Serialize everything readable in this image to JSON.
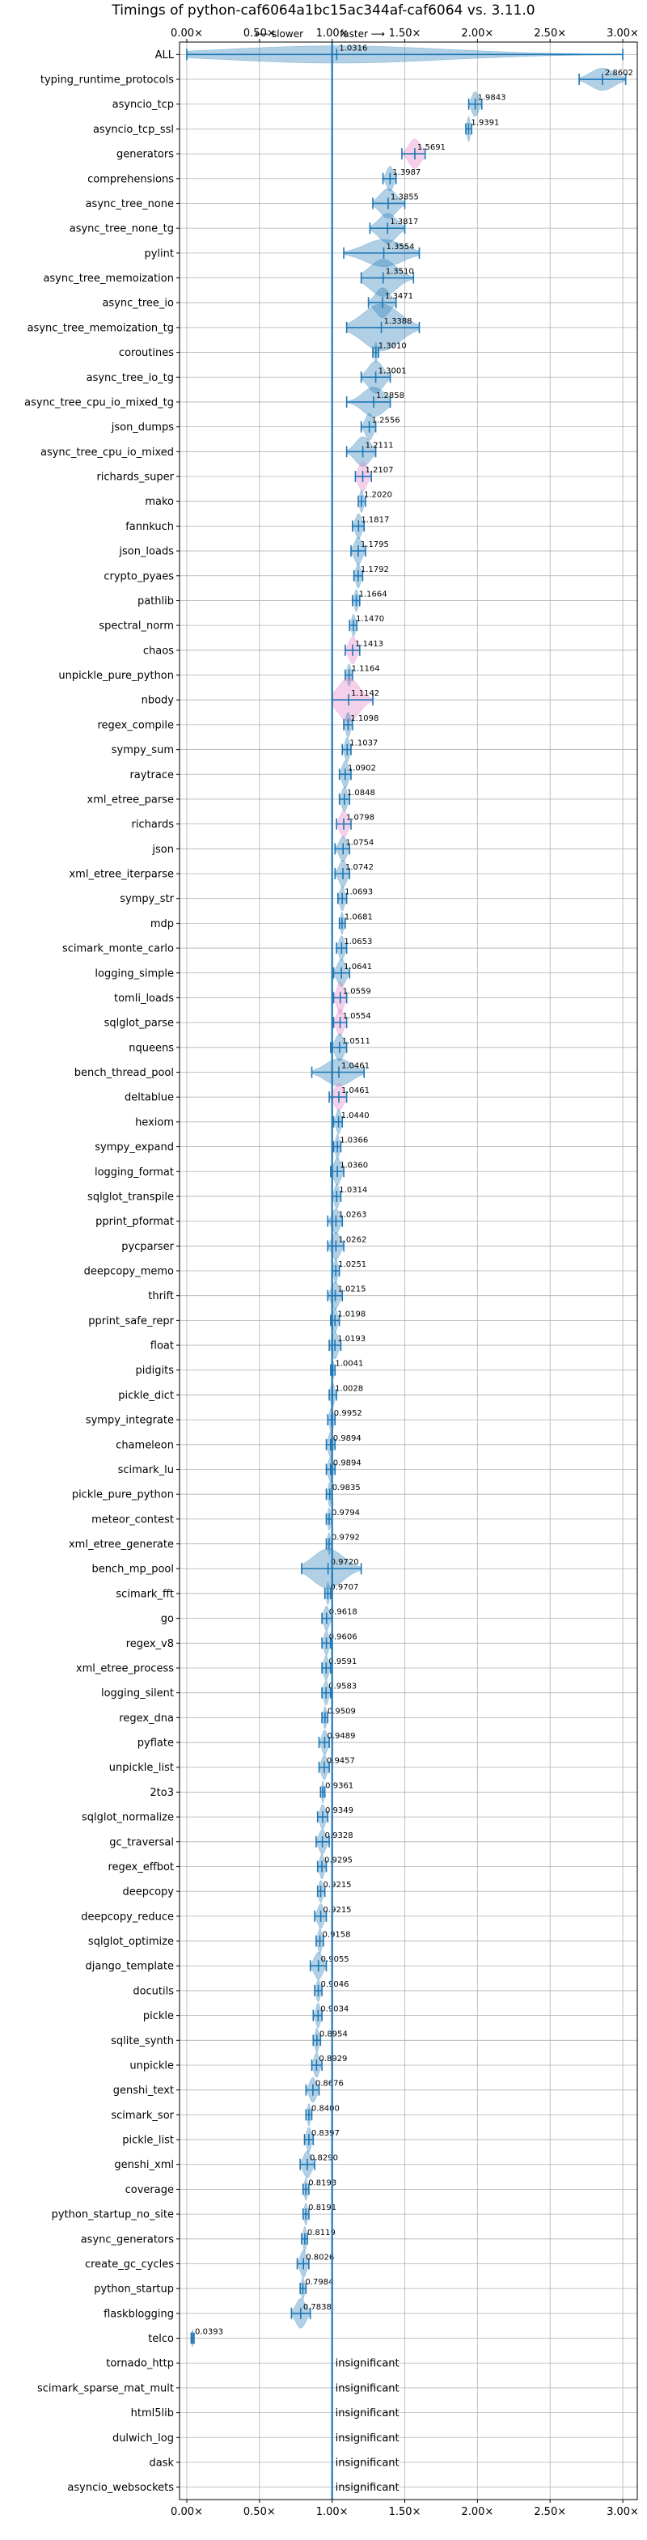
{
  "chart_data": {
    "type": "violin",
    "title": "Timings of python-caf6064a1bc15ac344af-caf6064 vs. 3.11.0",
    "subtitle_slower": "⟵ slower",
    "subtitle_faster": "faster ⟶",
    "xlim": [
      -0.05,
      3.1
    ],
    "xticks": [
      0.0,
      0.5,
      1.0,
      1.5,
      2.0,
      2.5,
      3.0
    ],
    "xtick_labels": [
      "0.00×",
      "0.50×",
      "1.00×",
      "1.50×",
      "2.00×",
      "2.50×",
      "3.00×"
    ],
    "grid": true,
    "reference_line": 1.0,
    "colors": {
      "normal": "#1f77b4",
      "highlight": "#e377c2",
      "reference": "#1f77b4"
    },
    "benchmarks": [
      {
        "name": "ALL",
        "value": 1.0316,
        "label": "1.0316",
        "lo": 0.0,
        "hi": 3.0,
        "w": 0.35
      },
      {
        "name": "typing_runtime_protocols",
        "value": 2.8602,
        "label": "2.8602",
        "lo": 2.7,
        "hi": 3.02,
        "w": 0.45
      },
      {
        "name": "asyncio_tcp",
        "value": 1.9843,
        "label": "1.9843",
        "lo": 1.94,
        "hi": 2.03,
        "w": 0.5
      },
      {
        "name": "asyncio_tcp_ssl",
        "value": 1.9391,
        "label": "1.9391",
        "lo": 1.92,
        "hi": 1.96,
        "w": 0.5
      },
      {
        "name": "generators",
        "value": 1.5691,
        "label": "1.5691",
        "lo": 1.48,
        "hi": 1.64,
        "w": 0.6,
        "hl": true
      },
      {
        "name": "comprehensions",
        "value": 1.3987,
        "label": "1.3987",
        "lo": 1.35,
        "hi": 1.44,
        "w": 0.5
      },
      {
        "name": "async_tree_none",
        "value": 1.3855,
        "label": "1.3855",
        "lo": 1.28,
        "hi": 1.5,
        "w": 0.6
      },
      {
        "name": "async_tree_none_tg",
        "value": 1.3817,
        "label": "1.3817",
        "lo": 1.26,
        "hi": 1.5,
        "w": 0.6
      },
      {
        "name": "pylint",
        "value": 1.3554,
        "label": "1.3554",
        "lo": 1.08,
        "hi": 1.6,
        "w": 0.55
      },
      {
        "name": "async_tree_memoization",
        "value": 1.351,
        "label": "1.3510",
        "lo": 1.2,
        "hi": 1.56,
        "w": 0.75
      },
      {
        "name": "async_tree_io",
        "value": 1.3471,
        "label": "1.3471",
        "lo": 1.25,
        "hi": 1.44,
        "w": 0.6
      },
      {
        "name": "async_tree_memoization_tg",
        "value": 1.3388,
        "label": "1.3388",
        "lo": 1.1,
        "hi": 1.6,
        "w": 0.95
      },
      {
        "name": "coroutines",
        "value": 1.301,
        "label": "1.3010",
        "lo": 1.28,
        "hi": 1.32,
        "w": 0.4
      },
      {
        "name": "async_tree_io_tg",
        "value": 1.3001,
        "label": "1.3001",
        "lo": 1.2,
        "hi": 1.4,
        "w": 0.65
      },
      {
        "name": "async_tree_cpu_io_mixed_tg",
        "value": 1.2858,
        "label": "1.2858",
        "lo": 1.1,
        "hi": 1.4,
        "w": 0.6
      },
      {
        "name": "json_dumps",
        "value": 1.2556,
        "label": "1.2556",
        "lo": 1.2,
        "hi": 1.3,
        "w": 0.55
      },
      {
        "name": "async_tree_cpu_io_mixed",
        "value": 1.2111,
        "label": "1.2111",
        "lo": 1.1,
        "hi": 1.3,
        "w": 0.6
      },
      {
        "name": "richards_super",
        "value": 1.2107,
        "label": "1.2107",
        "lo": 1.16,
        "hi": 1.27,
        "w": 0.6,
        "hl": true
      },
      {
        "name": "mako",
        "value": 1.202,
        "label": "1.2020",
        "lo": 1.18,
        "hi": 1.23,
        "w": 0.45
      },
      {
        "name": "fannkuch",
        "value": 1.1817,
        "label": "1.1817",
        "lo": 1.14,
        "hi": 1.22,
        "w": 0.5
      },
      {
        "name": "json_loads",
        "value": 1.1795,
        "label": "1.1795",
        "lo": 1.13,
        "hi": 1.23,
        "w": 0.55
      },
      {
        "name": "crypto_pyaes",
        "value": 1.1792,
        "label": "1.1792",
        "lo": 1.15,
        "hi": 1.21,
        "w": 0.5
      },
      {
        "name": "pathlib",
        "value": 1.1664,
        "label": "1.1664",
        "lo": 1.14,
        "hi": 1.19,
        "w": 0.45
      },
      {
        "name": "spectral_norm",
        "value": 1.147,
        "label": "1.1470",
        "lo": 1.12,
        "hi": 1.17,
        "w": 0.45
      },
      {
        "name": "chaos",
        "value": 1.1413,
        "label": "1.1413",
        "lo": 1.09,
        "hi": 1.19,
        "w": 0.55,
        "hl": true
      },
      {
        "name": "unpickle_pure_python",
        "value": 1.1164,
        "label": "1.1164",
        "lo": 1.09,
        "hi": 1.14,
        "w": 0.45
      },
      {
        "name": "nbody",
        "value": 1.1142,
        "label": "1.1142",
        "lo": 1.0,
        "hi": 1.28,
        "w": 0.9,
        "hl": true
      },
      {
        "name": "regex_compile",
        "value": 1.1098,
        "label": "1.1098",
        "lo": 1.08,
        "hi": 1.14,
        "w": 0.5
      },
      {
        "name": "sympy_sum",
        "value": 1.1037,
        "label": "1.1037",
        "lo": 1.07,
        "hi": 1.13,
        "w": 0.5
      },
      {
        "name": "raytrace",
        "value": 1.0902,
        "label": "1.0902",
        "lo": 1.05,
        "hi": 1.13,
        "w": 0.55
      },
      {
        "name": "xml_etree_parse",
        "value": 1.0848,
        "label": "1.0848",
        "lo": 1.05,
        "hi": 1.12,
        "w": 0.5
      },
      {
        "name": "richards",
        "value": 1.0798,
        "label": "1.0798",
        "lo": 1.03,
        "hi": 1.13,
        "w": 0.55,
        "hl": true
      },
      {
        "name": "json",
        "value": 1.0754,
        "label": "1.0754",
        "lo": 1.02,
        "hi": 1.12,
        "w": 0.5
      },
      {
        "name": "xml_etree_iterparse",
        "value": 1.0742,
        "label": "1.0742",
        "lo": 1.02,
        "hi": 1.12,
        "w": 0.55
      },
      {
        "name": "sympy_str",
        "value": 1.0693,
        "label": "1.0693",
        "lo": 1.04,
        "hi": 1.1,
        "w": 0.5
      },
      {
        "name": "mdp",
        "value": 1.0681,
        "label": "1.0681",
        "lo": 1.05,
        "hi": 1.09,
        "w": 0.45
      },
      {
        "name": "scimark_monte_carlo",
        "value": 1.0653,
        "label": "1.0653",
        "lo": 1.03,
        "hi": 1.1,
        "w": 0.5
      },
      {
        "name": "logging_simple",
        "value": 1.0641,
        "label": "1.0641",
        "lo": 1.01,
        "hi": 1.12,
        "w": 0.55
      },
      {
        "name": "tomli_loads",
        "value": 1.0559,
        "label": "1.0559",
        "lo": 1.01,
        "hi": 1.1,
        "w": 0.65,
        "hl": true
      },
      {
        "name": "sqlglot_parse",
        "value": 1.0554,
        "label": "1.0554",
        "lo": 1.01,
        "hi": 1.1,
        "w": 0.55,
        "hl": true
      },
      {
        "name": "nqueens",
        "value": 1.0511,
        "label": "1.0511",
        "lo": 0.99,
        "hi": 1.1,
        "w": 0.55
      },
      {
        "name": "bench_thread_pool",
        "value": 1.0461,
        "label": "1.0461",
        "lo": 0.86,
        "hi": 1.22,
        "w": 0.55
      },
      {
        "name": "deltablue",
        "value": 1.0461,
        "label": "1.0461",
        "lo": 0.98,
        "hi": 1.1,
        "w": 0.55,
        "hl": true
      },
      {
        "name": "hexiom",
        "value": 1.044,
        "label": "1.0440",
        "lo": 1.01,
        "hi": 1.07,
        "w": 0.5
      },
      {
        "name": "sympy_expand",
        "value": 1.0366,
        "label": "1.0366",
        "lo": 1.01,
        "hi": 1.06,
        "w": 0.5
      },
      {
        "name": "logging_format",
        "value": 1.036,
        "label": "1.0360",
        "lo": 0.99,
        "hi": 1.08,
        "w": 0.55
      },
      {
        "name": "sqlglot_transpile",
        "value": 1.0314,
        "label": "1.0314",
        "lo": 1.0,
        "hi": 1.06,
        "w": 0.5
      },
      {
        "name": "pprint_pformat",
        "value": 1.0263,
        "label": "1.0263",
        "lo": 0.97,
        "hi": 1.07,
        "w": 0.5
      },
      {
        "name": "pycparser",
        "value": 1.0262,
        "label": "1.0262",
        "lo": 0.97,
        "hi": 1.08,
        "w": 0.55
      },
      {
        "name": "deepcopy_memo",
        "value": 1.0251,
        "label": "1.0251",
        "lo": 1.0,
        "hi": 1.05,
        "w": 0.5
      },
      {
        "name": "thrift",
        "value": 1.0215,
        "label": "1.0215",
        "lo": 0.97,
        "hi": 1.07,
        "w": 0.55
      },
      {
        "name": "pprint_safe_repr",
        "value": 1.0198,
        "label": "1.0198",
        "lo": 0.99,
        "hi": 1.05,
        "w": 0.5
      },
      {
        "name": "float",
        "value": 1.0193,
        "label": "1.0193",
        "lo": 0.98,
        "hi": 1.06,
        "w": 0.55
      },
      {
        "name": "pidigits",
        "value": 1.0041,
        "label": "1.0041",
        "lo": 0.99,
        "hi": 1.02,
        "w": 0.4
      },
      {
        "name": "pickle_dict",
        "value": 1.0028,
        "label": "1.0028",
        "lo": 0.98,
        "hi": 1.03,
        "w": 0.5
      },
      {
        "name": "sympy_integrate",
        "value": 0.9952,
        "label": "0.9952",
        "lo": 0.97,
        "hi": 1.02,
        "w": 0.5
      },
      {
        "name": "chameleon",
        "value": 0.9894,
        "label": "0.9894",
        "lo": 0.96,
        "hi": 1.02,
        "w": 0.5
      },
      {
        "name": "scimark_lu",
        "value": 0.9894,
        "label": "0.9894",
        "lo": 0.96,
        "hi": 1.02,
        "w": 0.5
      },
      {
        "name": "pickle_pure_python",
        "value": 0.9835,
        "label": "0.9835",
        "lo": 0.96,
        "hi": 1.0,
        "w": 0.5
      },
      {
        "name": "meteor_contest",
        "value": 0.9794,
        "label": "0.9794",
        "lo": 0.96,
        "hi": 1.0,
        "w": 0.45
      },
      {
        "name": "xml_etree_generate",
        "value": 0.9792,
        "label": "0.9792",
        "lo": 0.96,
        "hi": 1.0,
        "w": 0.45
      },
      {
        "name": "bench_mp_pool",
        "value": 0.972,
        "label": "0.9720",
        "lo": 0.79,
        "hi": 1.2,
        "w": 0.8
      },
      {
        "name": "scimark_fft",
        "value": 0.9707,
        "label": "0.9707",
        "lo": 0.95,
        "hi": 0.99,
        "w": 0.45
      },
      {
        "name": "go",
        "value": 0.9618,
        "label": "0.9618",
        "lo": 0.93,
        "hi": 1.0,
        "w": 0.5
      },
      {
        "name": "regex_v8",
        "value": 0.9606,
        "label": "0.9606",
        "lo": 0.93,
        "hi": 0.99,
        "w": 0.5
      },
      {
        "name": "xml_etree_process",
        "value": 0.9591,
        "label": "0.9591",
        "lo": 0.93,
        "hi": 0.99,
        "w": 0.5
      },
      {
        "name": "logging_silent",
        "value": 0.9583,
        "label": "0.9583",
        "lo": 0.93,
        "hi": 0.99,
        "w": 0.5
      },
      {
        "name": "regex_dna",
        "value": 0.9509,
        "label": "0.9509",
        "lo": 0.93,
        "hi": 0.97,
        "w": 0.45
      },
      {
        "name": "pyflate",
        "value": 0.9489,
        "label": "0.9489",
        "lo": 0.91,
        "hi": 0.98,
        "w": 0.5
      },
      {
        "name": "unpickle_list",
        "value": 0.9457,
        "label": "0.9457",
        "lo": 0.91,
        "hi": 0.98,
        "w": 0.5
      },
      {
        "name": "2to3",
        "value": 0.9361,
        "label": "0.9361",
        "lo": 0.92,
        "hi": 0.95,
        "w": 0.45
      },
      {
        "name": "sqlglot_normalize",
        "value": 0.9349,
        "label": "0.9349",
        "lo": 0.9,
        "hi": 0.97,
        "w": 0.5
      },
      {
        "name": "gc_traversal",
        "value": 0.9328,
        "label": "0.9328",
        "lo": 0.89,
        "hi": 0.98,
        "w": 0.5
      },
      {
        "name": "regex_effbot",
        "value": 0.9295,
        "label": "0.9295",
        "lo": 0.9,
        "hi": 0.96,
        "w": 0.5
      },
      {
        "name": "deepcopy",
        "value": 0.9215,
        "label": "0.9215",
        "lo": 0.9,
        "hi": 0.95,
        "w": 0.45
      },
      {
        "name": "deepcopy_reduce",
        "value": 0.9215,
        "label": "0.9215",
        "lo": 0.88,
        "hi": 0.96,
        "w": 0.5
      },
      {
        "name": "sqlglot_optimize",
        "value": 0.9158,
        "label": "0.9158",
        "lo": 0.89,
        "hi": 0.94,
        "w": 0.5
      },
      {
        "name": "django_template",
        "value": 0.9055,
        "label": "0.9055",
        "lo": 0.85,
        "hi": 0.96,
        "w": 0.55
      },
      {
        "name": "docutils",
        "value": 0.9046,
        "label": "0.9046",
        "lo": 0.88,
        "hi": 0.93,
        "w": 0.45
      },
      {
        "name": "pickle",
        "value": 0.9034,
        "label": "0.9034",
        "lo": 0.87,
        "hi": 0.93,
        "w": 0.5
      },
      {
        "name": "sqlite_synth",
        "value": 0.8954,
        "label": "0.8954",
        "lo": 0.87,
        "hi": 0.92,
        "w": 0.5
      },
      {
        "name": "unpickle",
        "value": 0.8929,
        "label": "0.8929",
        "lo": 0.86,
        "hi": 0.93,
        "w": 0.5
      },
      {
        "name": "genshi_text",
        "value": 0.8676,
        "label": "0.8676",
        "lo": 0.82,
        "hi": 0.91,
        "w": 0.5
      },
      {
        "name": "scimark_sor",
        "value": 0.84,
        "label": "0.8400",
        "lo": 0.82,
        "hi": 0.86,
        "w": 0.45
      },
      {
        "name": "pickle_list",
        "value": 0.8397,
        "label": "0.8397",
        "lo": 0.81,
        "hi": 0.87,
        "w": 0.5
      },
      {
        "name": "genshi_xml",
        "value": 0.829,
        "label": "0.8290",
        "lo": 0.78,
        "hi": 0.88,
        "w": 0.55
      },
      {
        "name": "coverage",
        "value": 0.8193,
        "label": "0.8193",
        "lo": 0.8,
        "hi": 0.84,
        "w": 0.45
      },
      {
        "name": "python_startup_no_site",
        "value": 0.8191,
        "label": "0.8191",
        "lo": 0.8,
        "hi": 0.84,
        "w": 0.45
      },
      {
        "name": "async_generators",
        "value": 0.8119,
        "label": "0.8119",
        "lo": 0.79,
        "hi": 0.83,
        "w": 0.5
      },
      {
        "name": "create_gc_cycles",
        "value": 0.8026,
        "label": "0.8026",
        "lo": 0.76,
        "hi": 0.84,
        "w": 0.55
      },
      {
        "name": "python_startup",
        "value": 0.7984,
        "label": "0.7984",
        "lo": 0.78,
        "hi": 0.82,
        "w": 0.45
      },
      {
        "name": "flaskblogging",
        "value": 0.7838,
        "label": "0.7838",
        "lo": 0.72,
        "hi": 0.85,
        "w": 0.6
      },
      {
        "name": "telco",
        "value": 0.0393,
        "label": "0.0393",
        "lo": 0.03,
        "hi": 0.05,
        "w": 0.35
      },
      {
        "name": "tornado_http",
        "insignificant": true
      },
      {
        "name": "scimark_sparse_mat_mult",
        "insignificant": true
      },
      {
        "name": "html5lib",
        "insignificant": true
      },
      {
        "name": "dulwich_log",
        "insignificant": true
      },
      {
        "name": "dask",
        "insignificant": true
      },
      {
        "name": "asyncio_websockets",
        "insignificant": true
      }
    ],
    "insignificant_label": "insignificant"
  }
}
